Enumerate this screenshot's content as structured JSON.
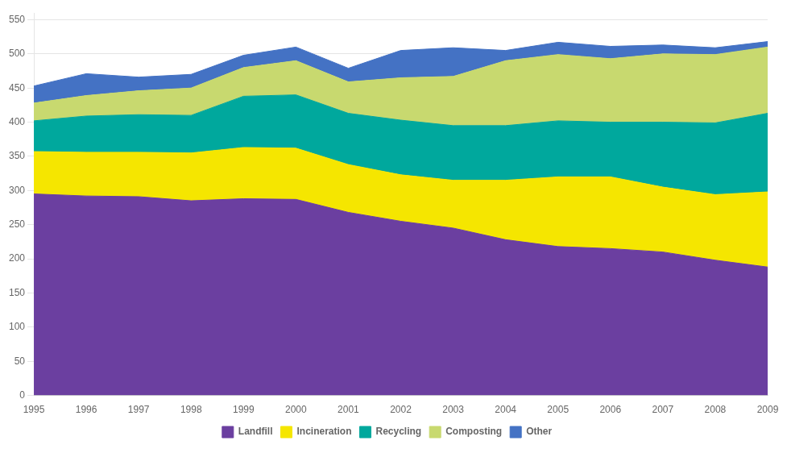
{
  "chart_data": {
    "type": "area",
    "stacked": true,
    "x": [
      1995,
      1996,
      1997,
      1998,
      1999,
      2000,
      2001,
      2002,
      2003,
      2004,
      2005,
      2006,
      2007,
      2008,
      2009
    ],
    "xlim": [
      1995,
      2009
    ],
    "xticks": [
      1995,
      1996,
      1997,
      1998,
      1999,
      2000,
      2001,
      2002,
      2003,
      2004,
      2005,
      2006,
      2007,
      2008,
      2009
    ],
    "ylim": [
      0,
      560
    ],
    "yticks": [
      0,
      50,
      100,
      150,
      200,
      250,
      300,
      350,
      400,
      450,
      500,
      550
    ],
    "grid": true,
    "legend": "bottom",
    "series": [
      {
        "name": "Landfill",
        "color": "#6b3fa0",
        "values": [
          295,
          292,
          291,
          285,
          288,
          287,
          268,
          255,
          245,
          228,
          218,
          215,
          210,
          198,
          188
        ]
      },
      {
        "name": "Incineration",
        "color": "#f5e600",
        "values": [
          62,
          64,
          65,
          70,
          75,
          75,
          70,
          68,
          70,
          87,
          102,
          105,
          95,
          96,
          110
        ]
      },
      {
        "name": "Recycling",
        "color": "#00a89d",
        "values": [
          45,
          53,
          55,
          55,
          75,
          78,
          75,
          80,
          80,
          80,
          82,
          80,
          95,
          105,
          115
        ]
      },
      {
        "name": "Composting",
        "color": "#c8d96f",
        "values": [
          26,
          30,
          35,
          40,
          42,
          50,
          46,
          62,
          72,
          95,
          97,
          93,
          100,
          100,
          97
        ]
      },
      {
        "name": "Other",
        "color": "#4472c4",
        "values": [
          25,
          32,
          20,
          20,
          18,
          20,
          20,
          40,
          42,
          15,
          18,
          18,
          13,
          10,
          8
        ]
      }
    ]
  }
}
